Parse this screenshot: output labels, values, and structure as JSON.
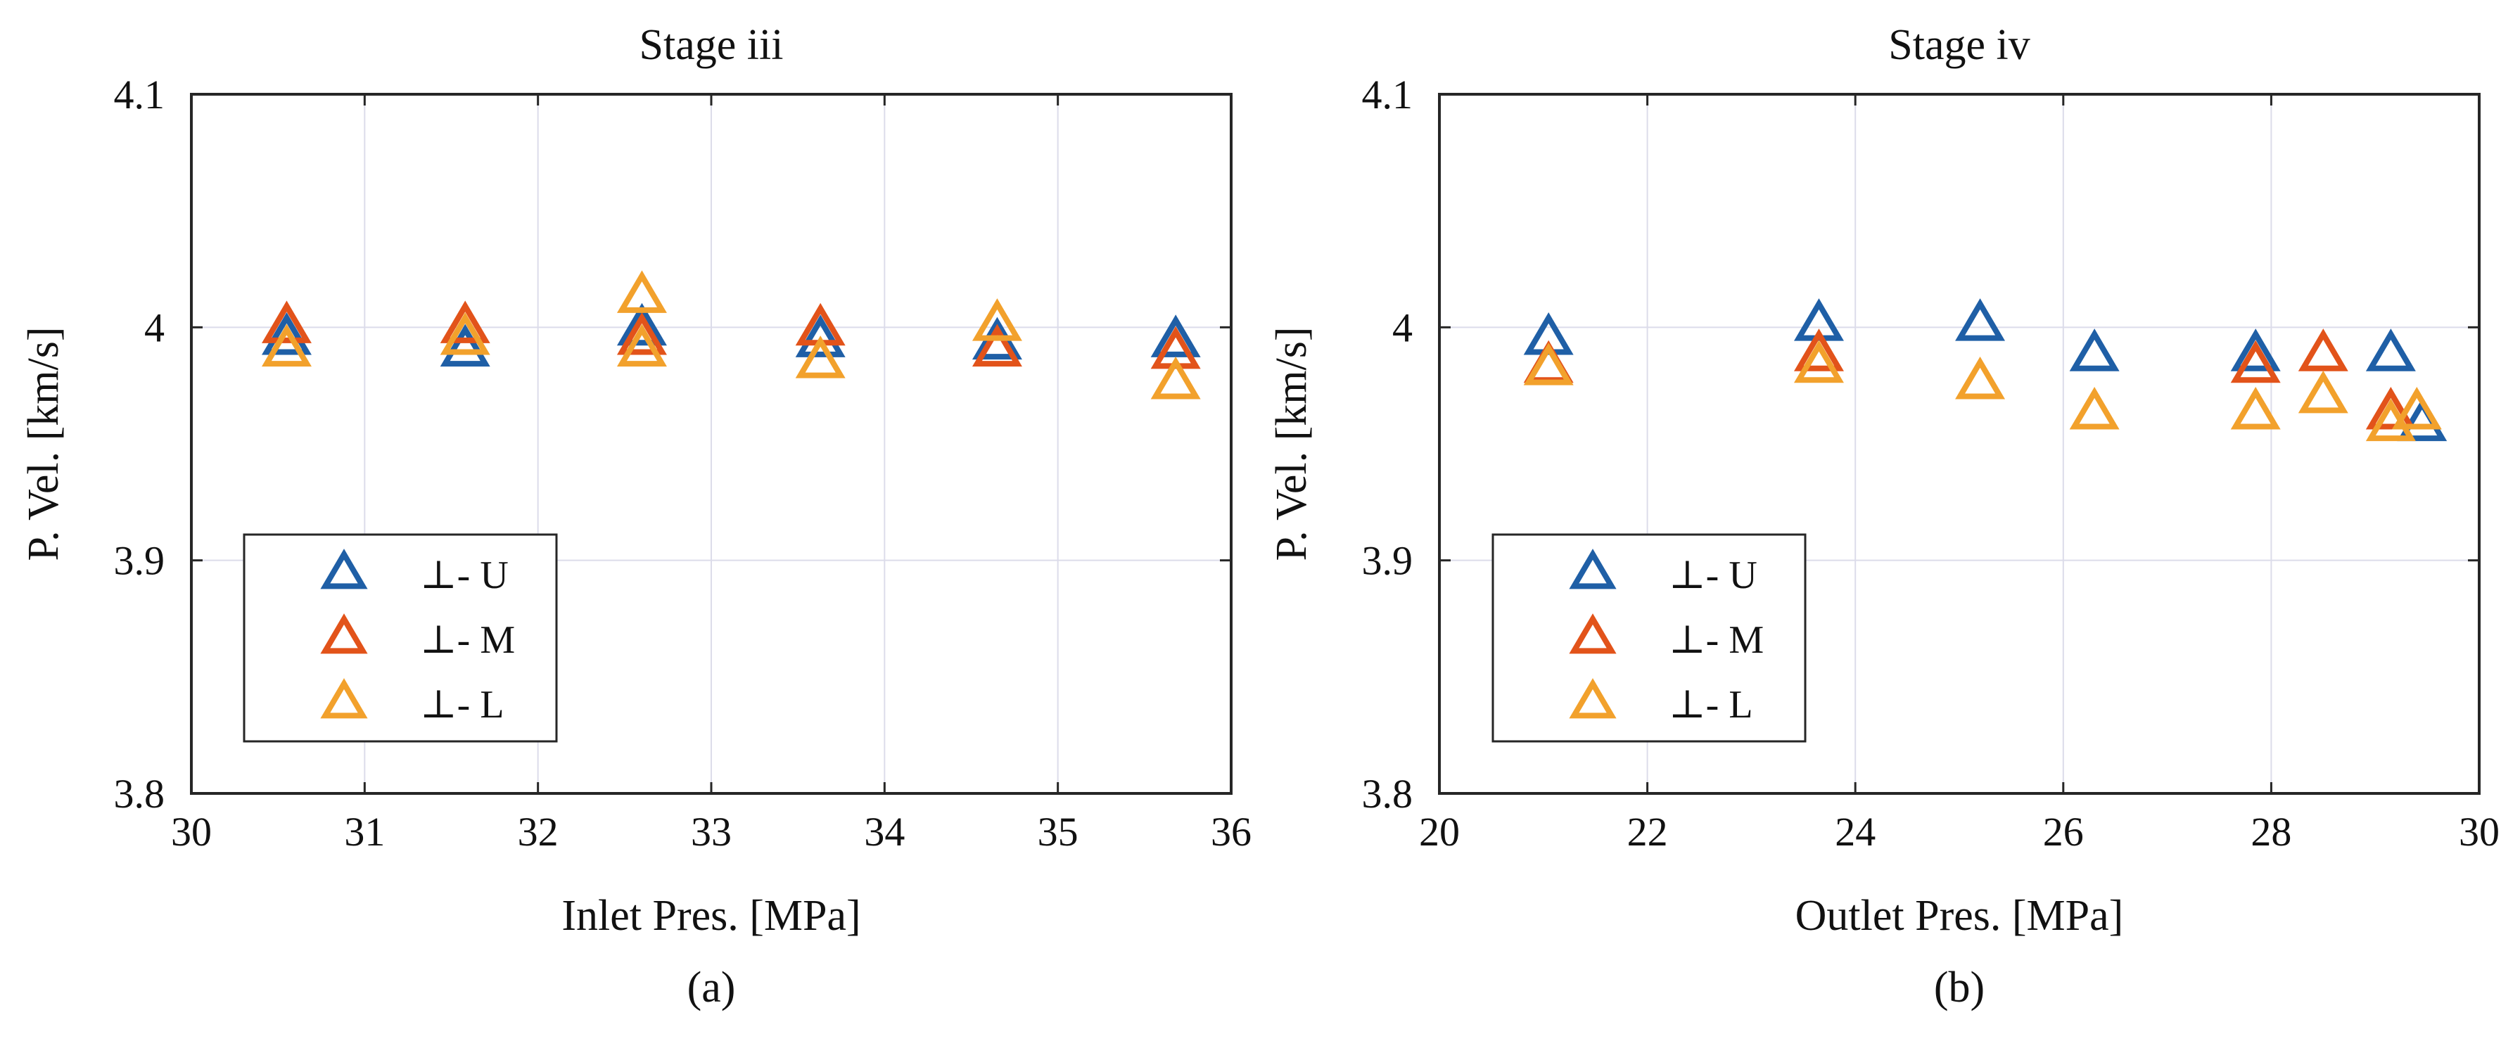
{
  "chart_data": [
    {
      "type": "scatter",
      "title": "Stage iii",
      "xlabel": "Inlet Pres. [MPa]",
      "ylabel": "P. Vel. [km/s]",
      "caption": "(a)",
      "xlim": [
        30,
        36
      ],
      "ylim": [
        3.8,
        4.1
      ],
      "xticks": [
        30,
        31,
        32,
        33,
        34,
        35,
        36
      ],
      "xtick_labels": [
        "30",
        "31",
        "32",
        "33",
        "34",
        "35",
        "36"
      ],
      "yticks": [
        3.8,
        3.9,
        4.0,
        4.1
      ],
      "ytick_labels": [
        "3.8",
        "3.9",
        "4",
        "4.1"
      ],
      "grid": true,
      "legend_position": "bottom-left",
      "series": [
        {
          "name": "⊥- U",
          "color": "#1f5fa6",
          "marker": "triangle-open",
          "x": [
            30.55,
            31.58,
            32.6,
            33.63,
            34.65,
            35.68
          ],
          "y": [
            3.995,
            3.99,
            3.999,
            3.994,
            3.993,
            3.994
          ]
        },
        {
          "name": "⊥- M",
          "color": "#e2531a",
          "marker": "triangle-open",
          "x": [
            30.55,
            31.58,
            32.6,
            33.63,
            34.65,
            35.68
          ],
          "y": [
            4.0,
            4.0,
            3.995,
            3.999,
            3.99,
            3.989
          ]
        },
        {
          "name": "⊥- L",
          "color": "#f2a12c",
          "marker": "triangle-open",
          "x": [
            30.55,
            31.58,
            32.6,
            32.6,
            33.63,
            34.65,
            35.68
          ],
          "y": [
            3.99,
            3.995,
            4.013,
            3.99,
            3.985,
            4.001,
            3.976
          ]
        }
      ]
    },
    {
      "type": "scatter",
      "title": "Stage iv",
      "xlabel": "Outlet Pres. [MPa]",
      "ylabel": "P. Vel. [km/s]",
      "caption": "(b)",
      "xlim": [
        20,
        30
      ],
      "ylim": [
        3.8,
        4.1
      ],
      "xticks": [
        20,
        22,
        24,
        26,
        28,
        30
      ],
      "xtick_labels": [
        "20",
        "22",
        "24",
        "26",
        "28",
        "30"
      ],
      "yticks": [
        3.8,
        3.9,
        4.0,
        4.1
      ],
      "ytick_labels": [
        "3.8",
        "3.9",
        "4",
        "4.1"
      ],
      "grid": true,
      "legend_position": "bottom-left",
      "series": [
        {
          "name": "⊥- U",
          "color": "#1f5fa6",
          "marker": "triangle-open",
          "x": [
            21.05,
            23.65,
            25.2,
            26.3,
            27.85,
            29.15,
            29.45
          ],
          "y": [
            3.995,
            4.001,
            4.001,
            3.988,
            3.988,
            3.988,
            3.958
          ]
        },
        {
          "name": "⊥- M",
          "color": "#e2531a",
          "marker": "triangle-open",
          "x": [
            21.05,
            23.65,
            27.85,
            28.5,
            29.15
          ],
          "y": [
            3.983,
            3.988,
            3.983,
            3.988,
            3.963
          ]
        },
        {
          "name": "⊥- L",
          "color": "#f2a12c",
          "marker": "triangle-open",
          "x": [
            21.05,
            23.65,
            25.2,
            26.3,
            27.85,
            28.5,
            29.15,
            29.4
          ],
          "y": [
            3.982,
            3.983,
            3.976,
            3.963,
            3.963,
            3.97,
            3.958,
            3.963
          ]
        }
      ]
    }
  ]
}
